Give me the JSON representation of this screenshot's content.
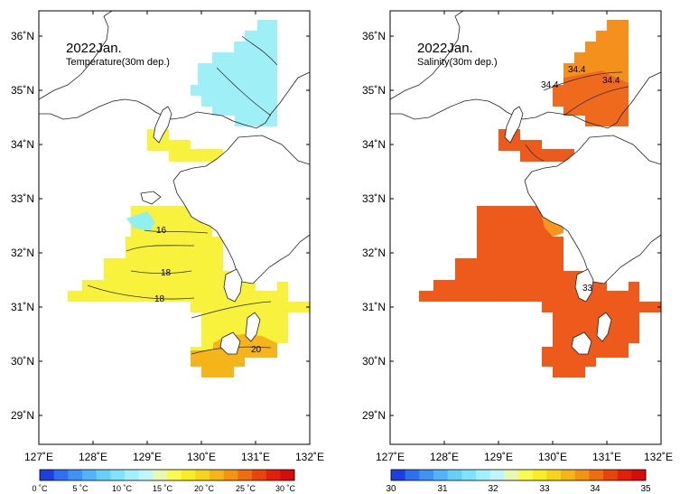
{
  "panels": [
    {
      "title": "2022Jan.",
      "subtitle": "Temperature(30m dep.)",
      "lon_labels": [
        "127˚E",
        "128˚E",
        "129˚E",
        "130˚E",
        "131˚E",
        "132˚E"
      ],
      "lat_labels": [
        "36˚N",
        "35˚N",
        "34˚N",
        "33˚N",
        "32˚N",
        "31˚N",
        "30˚N",
        "29˚N"
      ],
      "contour_labels": [
        "16",
        "18",
        "18",
        "20"
      ],
      "colorbar": {
        "tick_labels": [
          "0 ˚C",
          "5 ˚C",
          "10 ˚C",
          "15 ˚C",
          "20 ˚C",
          "25 ˚C",
          "30 ˚C"
        ],
        "colors": [
          "#1c3fe0",
          "#2e6ff2",
          "#3f92f7",
          "#52b3fb",
          "#66d0fd",
          "#80e3fd",
          "#a0f0fd",
          "#c0f6fb",
          "#e8f8b0",
          "#fafa50",
          "#f8ef20",
          "#f6d418",
          "#f4b614",
          "#f29410",
          "#ef6d0c",
          "#ec4408",
          "#e41e08",
          "#d80c0c"
        ]
      }
    },
    {
      "title": "2022Jan.",
      "subtitle": "Salinity(30m dep.)",
      "lon_labels": [
        "127˚E",
        "128˚E",
        "129˚E",
        "130˚E",
        "131˚E",
        "132˚E"
      ],
      "lat_labels": [
        "36˚N",
        "35˚N",
        "34˚N",
        "33˚N",
        "32˚N",
        "31˚N",
        "30˚N",
        "29˚N"
      ],
      "contour_labels": [
        "34.4",
        "34.4",
        "34.4",
        "33"
      ],
      "colorbar": {
        "tick_labels": [
          "30",
          "31",
          "32",
          "33",
          "34",
          "35"
        ],
        "colors": [
          "#1c3fe0",
          "#2e6ff2",
          "#3f92f7",
          "#52b3fb",
          "#66d0fd",
          "#80e3fd",
          "#a0f0fd",
          "#c0f6fb",
          "#e8f8b0",
          "#fafa50",
          "#f8ef20",
          "#f6d418",
          "#f4b614",
          "#f29410",
          "#ef6d0c",
          "#ec4408",
          "#e41e08",
          "#d80c0c"
        ]
      }
    }
  ],
  "fills": {
    "temp_cold": "#9ef0f6",
    "temp_cold2": "#86e8f2",
    "temp_warm": "#f8f23c",
    "temp_warmer": "#f6dd1c",
    "temp_orange": "#f4b41a",
    "temp_orange2": "#f0a21e",
    "sal_orange": "#f4901c",
    "sal_red": "#ee5a1c",
    "sal_red2": "#f06a1e"
  }
}
